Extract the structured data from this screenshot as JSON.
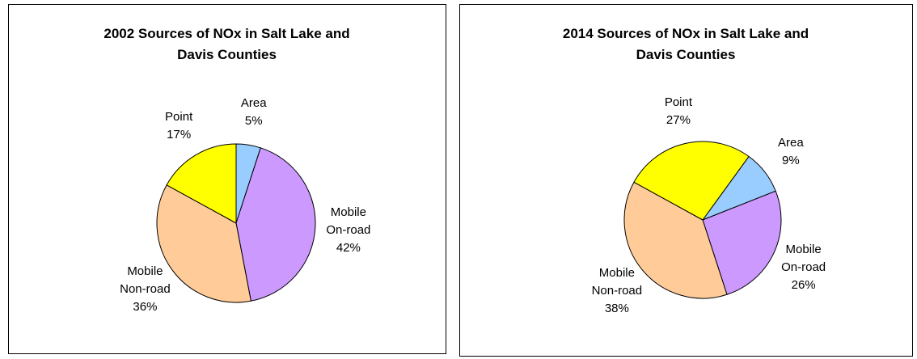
{
  "chart_data": [
    {
      "type": "pie",
      "title": "2002 Sources of NOx in Salt Lake and Davis Counties",
      "categories": [
        "Area",
        "Mobile On-road",
        "Mobile Non-road",
        "Point"
      ],
      "values": [
        5,
        42,
        36,
        17
      ],
      "value_labels": [
        "5%",
        "42%",
        "36%",
        "17%"
      ],
      "colors": [
        "#99ccff",
        "#cc99ff",
        "#ffcc99",
        "#ffff00"
      ],
      "start_angle": 0
    },
    {
      "type": "pie",
      "title": "2014 Sources of NOx in Salt Lake and Davis Counties",
      "categories": [
        "Area",
        "Mobile On-road",
        "Mobile Non-road",
        "Point"
      ],
      "values": [
        9,
        26,
        38,
        27
      ],
      "value_labels": [
        "9%",
        "26%",
        "38%",
        "27%"
      ],
      "colors": [
        "#99ccff",
        "#cc99ff",
        "#ffcc99",
        "#ffff00"
      ],
      "start_angle": 36
    }
  ]
}
